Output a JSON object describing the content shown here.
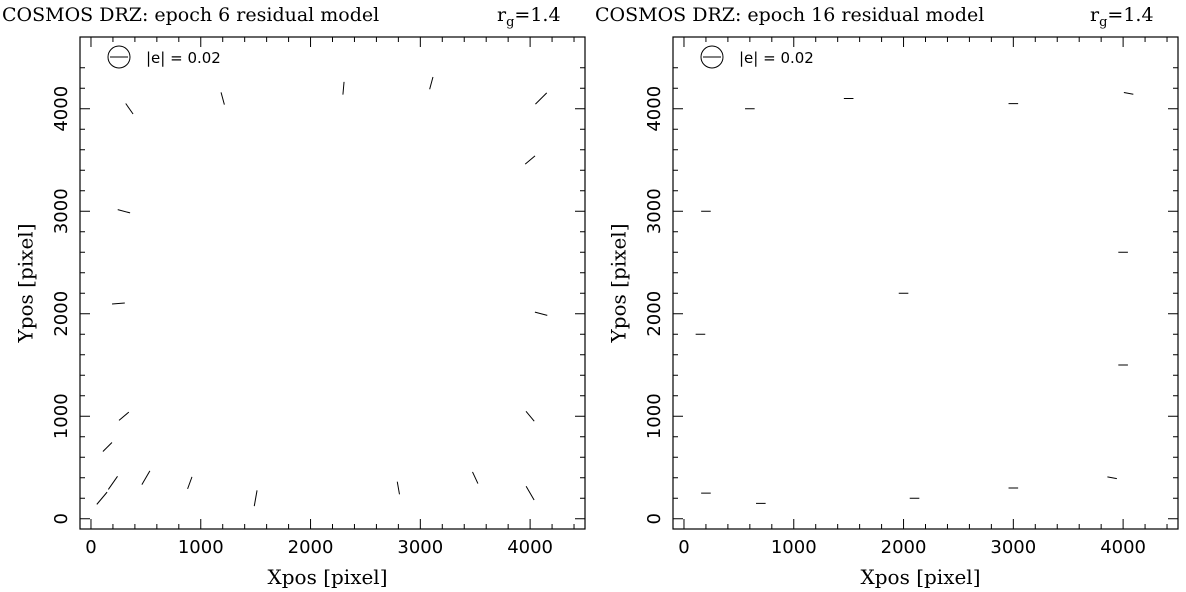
{
  "panels": [
    {
      "title": "COSMOS DRZ: epoch 6 residual model",
      "rg_symbol": "r",
      "rg_sub": "g",
      "rg_value": "=1.4",
      "legend_label": "|e| = 0.02",
      "xlabel": "Xpos [pixel]",
      "ylabel": "Ypos [pixel]",
      "xticks": [
        "0",
        "1000",
        "2000",
        "3000",
        "4000"
      ],
      "yticks": [
        "0",
        "1000",
        "2000",
        "3000",
        "4000"
      ]
    },
    {
      "title": "COSMOS DRZ: epoch 16 residual model",
      "rg_symbol": "r",
      "rg_sub": "g",
      "rg_value": "=1.4",
      "legend_label": "|e| = 0.02",
      "xlabel": "Xpos [pixel]",
      "ylabel": "Ypos [pixel]",
      "xticks": [
        "0",
        "1000",
        "2000",
        "3000",
        "4000"
      ],
      "yticks": [
        "0",
        "1000",
        "2000",
        "3000",
        "4000"
      ]
    }
  ],
  "chart_data": [
    {
      "type": "scatter",
      "subtype": "whisker",
      "title": "COSMOS DRZ: epoch 6 residual model",
      "xlabel": "Xpos [pixel]",
      "ylabel": "Ypos [pixel]",
      "xlim": [
        -100,
        4500
      ],
      "ylim": [
        -100,
        4700
      ],
      "x_ticks": [
        0,
        1000,
        2000,
        3000,
        4000
      ],
      "y_ticks": [
        0,
        1000,
        2000,
        3000,
        4000
      ],
      "legend": "|e| = 0.02",
      "grid": false,
      "pattern": "radial",
      "field_center": [
        2100,
        2200
      ],
      "whiskers": [
        {
          "x": 100,
          "y": 200,
          "angle_deg": 50,
          "e": 0.025
        },
        {
          "x": 200,
          "y": 350,
          "angle_deg": 55,
          "e": 0.025
        },
        {
          "x": 150,
          "y": 700,
          "angle_deg": 45,
          "e": 0.02
        },
        {
          "x": 300,
          "y": 1000,
          "angle_deg": 40,
          "e": 0.02
        },
        {
          "x": 500,
          "y": 400,
          "angle_deg": 60,
          "e": 0.025
        },
        {
          "x": 900,
          "y": 350,
          "angle_deg": 70,
          "e": 0.02
        },
        {
          "x": 1500,
          "y": 200,
          "angle_deg": 80,
          "e": 0.025
        },
        {
          "x": 2800,
          "y": 300,
          "angle_deg": 100,
          "e": 0.02
        },
        {
          "x": 3500,
          "y": 400,
          "angle_deg": 115,
          "e": 0.02
        },
        {
          "x": 4000,
          "y": 250,
          "angle_deg": 120,
          "e": 0.025
        },
        {
          "x": 4000,
          "y": 1000,
          "angle_deg": 130,
          "e": 0.02
        },
        {
          "x": 4100,
          "y": 2000,
          "angle_deg": 165,
          "e": 0.02
        },
        {
          "x": 4000,
          "y": 3500,
          "angle_deg": 40,
          "e": 0.02
        },
        {
          "x": 4100,
          "y": 4100,
          "angle_deg": 45,
          "e": 0.025
        },
        {
          "x": 3100,
          "y": 4250,
          "angle_deg": 75,
          "e": 0.02
        },
        {
          "x": 2300,
          "y": 4200,
          "angle_deg": 85,
          "e": 0.02
        },
        {
          "x": 1200,
          "y": 4100,
          "angle_deg": 105,
          "e": 0.02
        },
        {
          "x": 350,
          "y": 4000,
          "angle_deg": 125,
          "e": 0.02
        },
        {
          "x": 300,
          "y": 3000,
          "angle_deg": 165,
          "e": 0.02
        },
        {
          "x": 250,
          "y": 2100,
          "angle_deg": 5,
          "e": 0.02
        }
      ]
    },
    {
      "type": "scatter",
      "subtype": "whisker",
      "title": "COSMOS DRZ: epoch 16 residual model",
      "xlabel": "Xpos [pixel]",
      "ylabel": "Ypos [pixel]",
      "xlim": [
        -100,
        4500
      ],
      "ylim": [
        -100,
        4700
      ],
      "x_ticks": [
        0,
        1000,
        2000,
        3000,
        4000
      ],
      "y_ticks": [
        0,
        1000,
        2000,
        3000,
        4000
      ],
      "legend": "|e| = 0.02",
      "grid": false,
      "pattern": "horizontal",
      "whiskers": [
        {
          "x": 200,
          "y": 250,
          "angle_deg": 0,
          "e": 0.015
        },
        {
          "x": 700,
          "y": 150,
          "angle_deg": 0,
          "e": 0.015
        },
        {
          "x": 2100,
          "y": 200,
          "angle_deg": 0,
          "e": 0.015
        },
        {
          "x": 3000,
          "y": 300,
          "angle_deg": 0,
          "e": 0.015
        },
        {
          "x": 3900,
          "y": 400,
          "angle_deg": -10,
          "e": 0.015
        },
        {
          "x": 4000,
          "y": 1500,
          "angle_deg": 0,
          "e": 0.015
        },
        {
          "x": 4000,
          "y": 2600,
          "angle_deg": 0,
          "e": 0.015
        },
        {
          "x": 4050,
          "y": 4150,
          "angle_deg": -10,
          "e": 0.015
        },
        {
          "x": 3000,
          "y": 4050,
          "angle_deg": 0,
          "e": 0.015
        },
        {
          "x": 1500,
          "y": 4100,
          "angle_deg": 0,
          "e": 0.015
        },
        {
          "x": 600,
          "y": 4000,
          "angle_deg": 0,
          "e": 0.015
        },
        {
          "x": 200,
          "y": 3000,
          "angle_deg": 0,
          "e": 0.015
        },
        {
          "x": 150,
          "y": 1800,
          "angle_deg": 0,
          "e": 0.015
        },
        {
          "x": 2000,
          "y": 2200,
          "angle_deg": 0,
          "e": 0.015
        }
      ]
    }
  ]
}
